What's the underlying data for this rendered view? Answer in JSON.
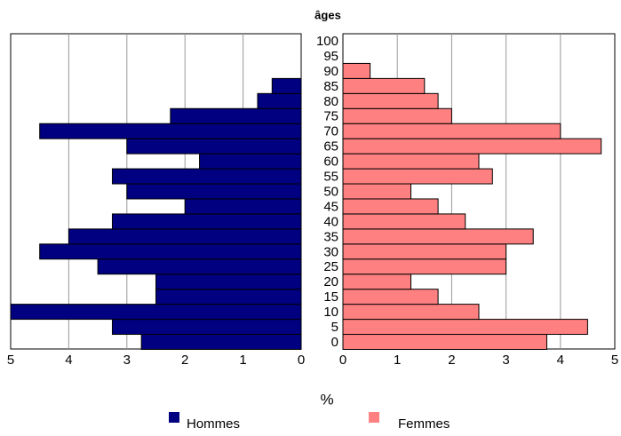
{
  "chart_data": {
    "type": "pyramid",
    "title": "âges",
    "xlabel": "%",
    "categories": [
      "0",
      "5",
      "10",
      "15",
      "20",
      "25",
      "30",
      "35",
      "40",
      "45",
      "50",
      "55",
      "60",
      "65",
      "70",
      "75",
      "80",
      "85",
      "90",
      "95",
      "100"
    ],
    "series": [
      {
        "name": "Hommes",
        "color": "#000080",
        "values": [
          2.75,
          3.25,
          5,
          2.5,
          2.5,
          3.5,
          4.5,
          4,
          3.25,
          2,
          3,
          3.25,
          1.75,
          3,
          4.5,
          2.25,
          0.75,
          0.5,
          null,
          null,
          null
        ]
      },
      {
        "name": "Femmes",
        "color": "#ff8080",
        "values": [
          3.75,
          4.5,
          2.5,
          1.75,
          1.25,
          3,
          3,
          3.5,
          2.25,
          1.75,
          1.25,
          2.75,
          2.5,
          4.75,
          4,
          2,
          1.75,
          1.5,
          0.5,
          null,
          null
        ]
      }
    ],
    "xlim": [
      0,
      5
    ],
    "xticks": [
      0,
      1,
      2,
      3,
      4,
      5
    ],
    "grid": true
  }
}
